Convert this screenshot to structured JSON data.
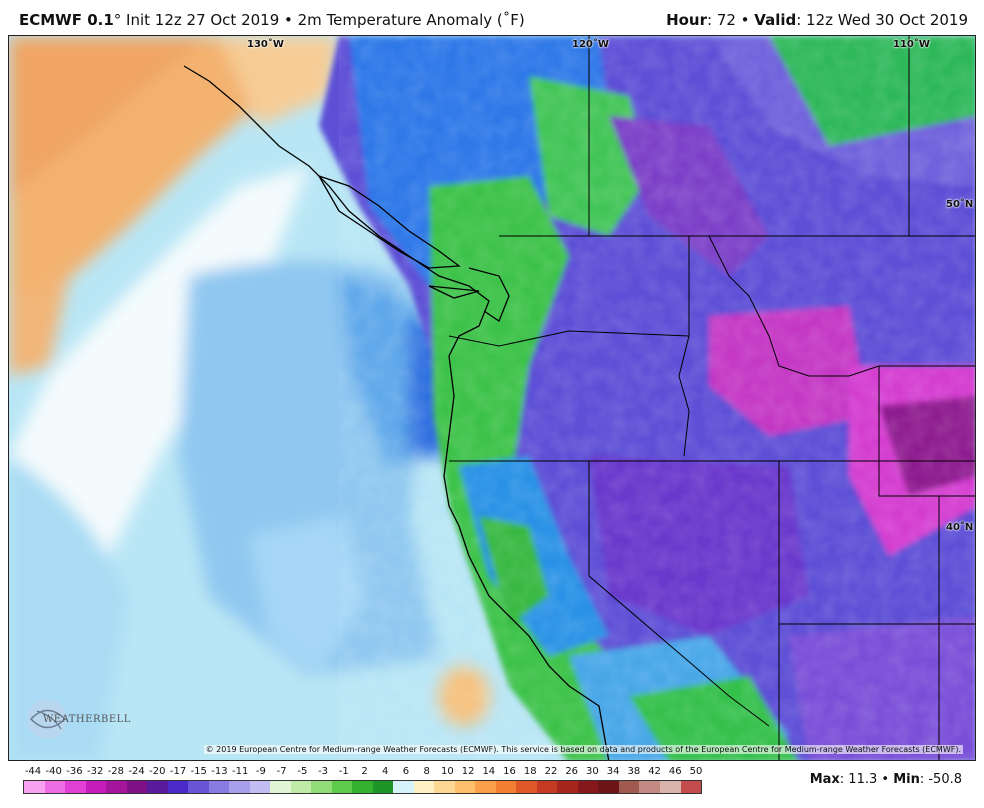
{
  "header": {
    "model": "ECMWF 0.1",
    "degree": "°",
    "init_text": " Init 12z 27 Oct 2019 • 2m Temperature Anomaly (˚F)",
    "hour_label": "Hour",
    "hour_value": ": 72 • ",
    "valid_label": "Valid",
    "valid_value": ": 12z Wed 30 Oct 2019"
  },
  "map": {
    "longitude_labels": [
      "130˚W",
      "120˚W",
      "110˚W"
    ],
    "latitude_labels": [
      "50˚N",
      "40˚N"
    ],
    "copyright": "© 2019 European Centre for Medium-range Weather Forecasts (ECMWF). This service is based on data and products of the European Centre for Medium-range Weather Forecasts (ECMWF).",
    "logo_text": "WEATHERBELL"
  },
  "colorbar": {
    "labels": [
      "-44",
      "-40",
      "-36",
      "-32",
      "-28",
      "-24",
      "-20",
      "-17",
      "-15",
      "-13",
      "-11",
      "-9",
      "-7",
      "-5",
      "-3",
      "-1",
      "2",
      "4",
      "6",
      "8",
      "10",
      "12",
      "14",
      "16",
      "18",
      "22",
      "26",
      "30",
      "34",
      "38",
      "42",
      "46",
      "50"
    ],
    "colors": [
      "#f7a1f0",
      "#ef6de4",
      "#e23fd6",
      "#c41dbb",
      "#a4159c",
      "#7e1185",
      "#5a1a9e",
      "#4a2ac8",
      "#6a55d9",
      "#8a7be3",
      "#a79fec",
      "#c2bdf2",
      "#e2f5d7",
      "#bfeaa7",
      "#92dc77",
      "#5fcb4c",
      "#32b22e",
      "#1e9627",
      "#d6f3fb",
      "#fff1c4",
      "#ffd795",
      "#ffbf6b",
      "#fba04a",
      "#f37d33",
      "#e05728",
      "#c43a22",
      "#a6261e",
      "#86171a",
      "#6d1417",
      "#a05a50",
      "#c28a82",
      "#dab3ad",
      "#c44c4c"
    ]
  },
  "stats": {
    "max_label": "Max",
    "max_value": ": 11.3 • ",
    "min_label": "Min",
    "min_value": ": -50.8"
  }
}
